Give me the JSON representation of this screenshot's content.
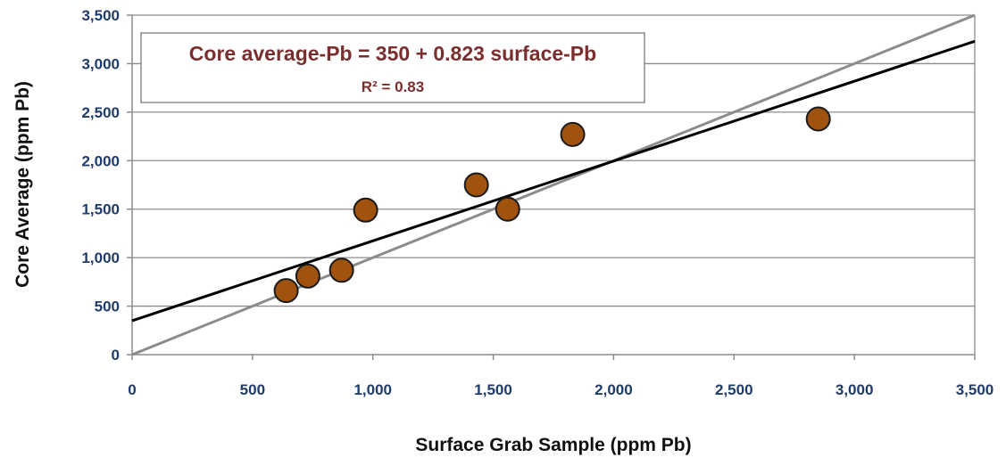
{
  "chart_data": {
    "type": "scatter",
    "xlabel": "Surface Grab Sample (ppm Pb)",
    "ylabel": "Core Average (ppm Pb)",
    "xlim": [
      0,
      3500
    ],
    "ylim": [
      0,
      3500
    ],
    "x_ticks": [
      0,
      500,
      1000,
      1500,
      2000,
      2500,
      3000,
      3500
    ],
    "y_ticks": [
      0,
      500,
      1000,
      1500,
      2000,
      2500,
      3000,
      3500
    ],
    "x_tick_labels": [
      "0",
      "500",
      "1,000",
      "1,500",
      "2,000",
      "2,500",
      "3,000",
      "3,500"
    ],
    "y_tick_labels": [
      "0",
      "500",
      "1,000",
      "1,500",
      "2,000",
      "2,500",
      "3,000",
      "3,500"
    ],
    "grid": "horizontal",
    "points": [
      {
        "x": 640,
        "y": 660
      },
      {
        "x": 730,
        "y": 810
      },
      {
        "x": 870,
        "y": 870
      },
      {
        "x": 970,
        "y": 1490
      },
      {
        "x": 1430,
        "y": 1750
      },
      {
        "x": 1560,
        "y": 1500
      },
      {
        "x": 1830,
        "y": 2270
      },
      {
        "x": 2850,
        "y": 2430
      }
    ],
    "regression": {
      "intercept": 350,
      "slope": 0.823
    },
    "reference_line": {
      "intercept": 0,
      "slope": 1
    },
    "annotation": {
      "equation": "Core average-Pb  = 350 + 0.823 surface-Pb",
      "r_squared": "R² = 0.83"
    },
    "colors": {
      "marker_fill": "#a0520f",
      "marker_stroke": "#1a1a1a",
      "regression_line": "#000000",
      "reference_line": "#8c8c8c",
      "grid": "#8c8c8c",
      "tick_labels": "#1f3b6b",
      "equation_text": "#7a2e2e"
    }
  }
}
